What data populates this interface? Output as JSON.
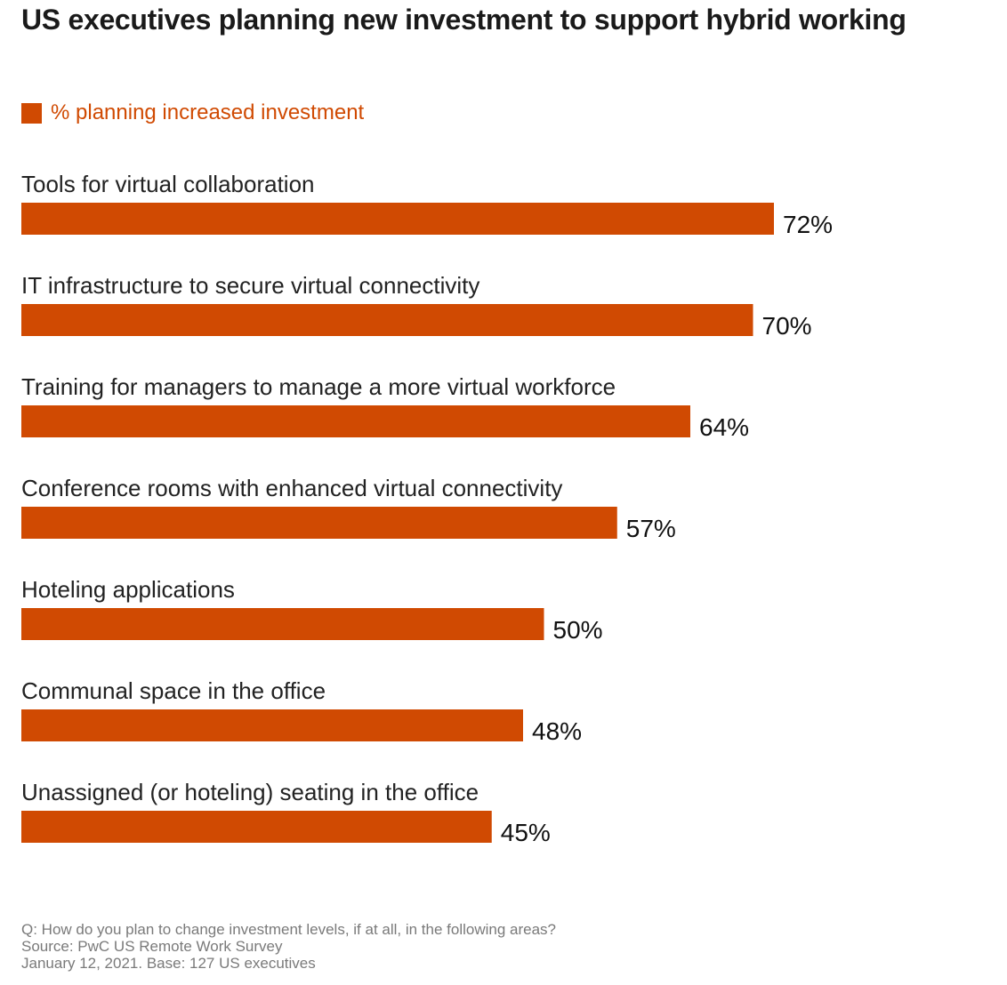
{
  "title": "US executives planning new investment to support hybrid working",
  "legend": {
    "label": "% planning increased investment",
    "color": "#d04a02"
  },
  "chart_data": {
    "type": "bar",
    "orientation": "horizontal",
    "title": "US executives planning new investment to support hybrid working",
    "categories": [
      "Tools for virtual collaboration",
      "IT infrastructure to secure virtual connectivity",
      "Training for managers to manage a more virtual workforce",
      "Conference rooms with enhanced virtual connectivity",
      "Hoteling applications",
      "Communal space in the office",
      "Unassigned (or hoteling) seating in the office"
    ],
    "series": [
      {
        "name": "% planning increased investment",
        "values": [
          72,
          70,
          64,
          57,
          50,
          48,
          45
        ]
      }
    ],
    "value_labels": [
      "72%",
      "70%",
      "64%",
      "57%",
      "50%",
      "48%",
      "45%"
    ],
    "unit": "%",
    "xlim": [
      0,
      100
    ],
    "grid": false,
    "legend_position": "top-left",
    "bar_color": "#d04a02"
  },
  "footnote": {
    "question": "Q: How do you plan to change investment levels, if at all, in the following areas?",
    "source": "Source: PwC US Remote Work Survey",
    "base": "January 12, 2021. Base: 127 US executives"
  }
}
